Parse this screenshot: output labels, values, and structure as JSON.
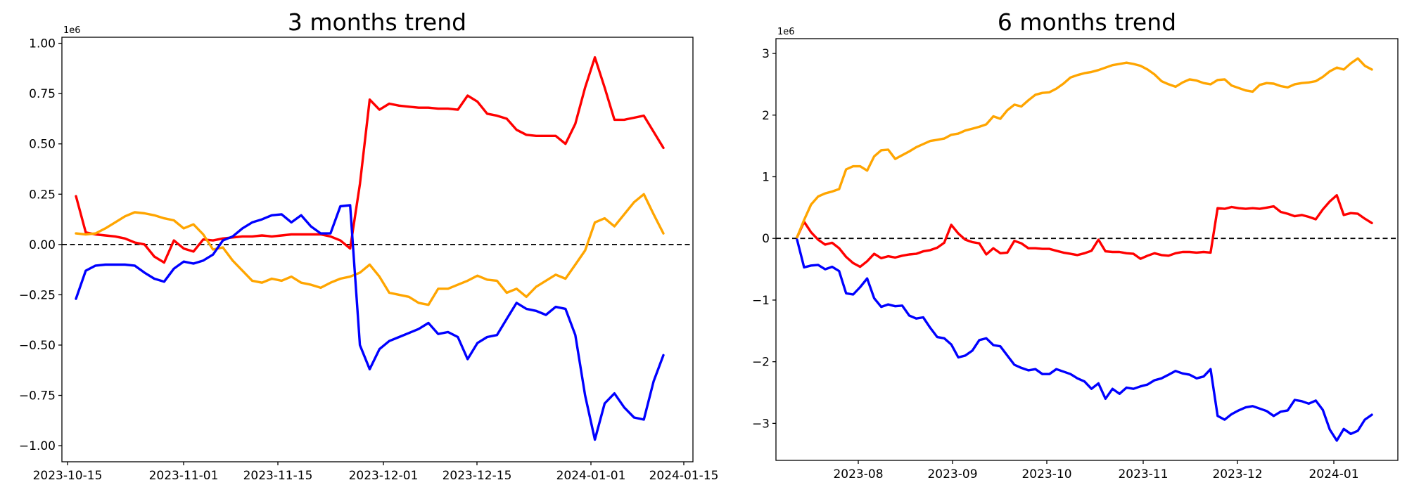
{
  "figure": {
    "background_color": "#ffffff",
    "text_color": "#000000"
  },
  "chart_data": [
    {
      "type": "line",
      "title": "3 months trend",
      "offset_label": "1e6",
      "y_unit_multiplier": 1000000,
      "grid": false,
      "legend": null,
      "zero_line": {
        "style": "dashed",
        "color": "#000000",
        "y": 0
      },
      "x_tick_labels": [
        "2023-10-15",
        "2023-11-01",
        "2023-11-15",
        "2023-12-01",
        "2023-12-15",
        "2024-01-01",
        "2024-01-15"
      ],
      "x_range": [
        "2023-10-16",
        "2024-01-11"
      ],
      "y_tick_labels": [
        "1.00",
        "0.75",
        "0.50",
        "0.25",
        "0.00",
        "−0.25",
        "−0.50",
        "−0.75",
        "−1.00"
      ],
      "y_tick_values": [
        1.0,
        0.75,
        0.5,
        0.25,
        0.0,
        -0.25,
        -0.5,
        -0.75,
        -1.0
      ],
      "ylim": [
        -1.08,
        1.03
      ],
      "series": [
        {
          "name": "red",
          "color": "#ff0000",
          "values": [
            0.24,
            0.06,
            0.05,
            0.045,
            0.04,
            0.03,
            0.01,
            0.0,
            -0.06,
            -0.09,
            0.02,
            -0.02,
            -0.035,
            0.025,
            0.02,
            0.03,
            0.035,
            0.04,
            0.04,
            0.045,
            0.04,
            0.045,
            0.05,
            0.05,
            0.05,
            0.05,
            0.04,
            0.02,
            -0.02,
            0.3,
            0.72,
            0.67,
            0.7,
            0.69,
            0.685,
            0.68,
            0.68,
            0.675,
            0.675,
            0.67,
            0.74,
            0.71,
            0.65,
            0.64,
            0.625,
            0.57,
            0.545,
            0.54,
            0.54,
            0.54,
            0.5,
            0.6,
            0.78,
            0.93,
            0.78,
            0.62,
            0.62,
            0.63,
            0.64,
            0.56,
            0.48
          ]
        },
        {
          "name": "orange",
          "color": "#ffa500",
          "values": [
            0.055,
            0.05,
            0.055,
            0.08,
            0.11,
            0.14,
            0.16,
            0.155,
            0.145,
            0.13,
            0.12,
            0.08,
            0.1,
            0.05,
            -0.025,
            -0.015,
            -0.08,
            -0.13,
            -0.18,
            -0.19,
            -0.17,
            -0.18,
            -0.16,
            -0.19,
            -0.2,
            -0.215,
            -0.19,
            -0.17,
            -0.16,
            -0.14,
            -0.1,
            -0.16,
            -0.24,
            -0.25,
            -0.26,
            -0.29,
            -0.3,
            -0.22,
            -0.22,
            -0.2,
            -0.18,
            -0.155,
            -0.175,
            -0.18,
            -0.24,
            -0.22,
            -0.26,
            -0.21,
            -0.18,
            -0.15,
            -0.17,
            -0.1,
            -0.03,
            0.11,
            0.13,
            0.09,
            0.15,
            0.21,
            0.25,
            0.15,
            0.055
          ]
        },
        {
          "name": "blue",
          "color": "#0000ff",
          "values": [
            -0.27,
            -0.13,
            -0.105,
            -0.1,
            -0.1,
            -0.1,
            -0.105,
            -0.14,
            -0.17,
            -0.185,
            -0.12,
            -0.085,
            -0.095,
            -0.08,
            -0.05,
            0.02,
            0.04,
            0.08,
            0.11,
            0.125,
            0.145,
            0.15,
            0.11,
            0.145,
            0.09,
            0.055,
            0.055,
            0.19,
            0.195,
            -0.5,
            -0.62,
            -0.52,
            -0.48,
            -0.46,
            -0.44,
            -0.42,
            -0.39,
            -0.445,
            -0.435,
            -0.46,
            -0.57,
            -0.49,
            -0.46,
            -0.45,
            -0.37,
            -0.29,
            -0.32,
            -0.33,
            -0.35,
            -0.31,
            -0.32,
            -0.45,
            -0.75,
            -0.97,
            -0.79,
            -0.74,
            -0.81,
            -0.86,
            -0.87,
            -0.68,
            -0.55
          ]
        }
      ]
    },
    {
      "type": "line",
      "title": "6 months trend",
      "offset_label": "1e6",
      "y_unit_multiplier": 1000000,
      "grid": false,
      "legend": null,
      "zero_line": {
        "style": "dashed",
        "color": "#000000",
        "y": 0
      },
      "x_tick_labels": [
        "2023-08",
        "2023-09",
        "2023-10",
        "2023-11",
        "2023-12",
        "2024-01"
      ],
      "x_range": [
        "2023-07-12",
        "2024-01-12"
      ],
      "y_tick_labels": [
        "3",
        "2",
        "1",
        "0",
        "−1",
        "−2",
        "−3"
      ],
      "y_tick_values": [
        3,
        2,
        1,
        0,
        -1,
        -2,
        -3
      ],
      "ylim": [
        -3.6,
        3.24
      ],
      "series": [
        {
          "name": "red",
          "color": "#ff0000",
          "values": [
            0.02,
            0.27,
            0.1,
            -0.02,
            -0.1,
            -0.07,
            -0.16,
            -0.3,
            -0.4,
            -0.46,
            -0.37,
            -0.25,
            -0.32,
            -0.29,
            -0.31,
            -0.28,
            -0.26,
            -0.25,
            -0.21,
            -0.19,
            -0.15,
            -0.07,
            0.22,
            0.08,
            -0.02,
            -0.06,
            -0.08,
            -0.26,
            -0.16,
            -0.24,
            -0.23,
            -0.04,
            -0.08,
            -0.16,
            -0.16,
            -0.17,
            -0.17,
            -0.2,
            -0.23,
            -0.25,
            -0.27,
            -0.24,
            -0.2,
            -0.02,
            -0.21,
            -0.22,
            -0.22,
            -0.24,
            -0.25,
            -0.33,
            -0.28,
            -0.24,
            -0.27,
            -0.28,
            -0.24,
            -0.22,
            -0.22,
            -0.23,
            -0.22,
            -0.23,
            0.49,
            0.48,
            0.51,
            0.49,
            0.48,
            0.49,
            0.48,
            0.5,
            0.52,
            0.43,
            0.4,
            0.36,
            0.38,
            0.35,
            0.31,
            0.47,
            0.6,
            0.7,
            0.38,
            0.41,
            0.4,
            0.32,
            0.25
          ]
        },
        {
          "name": "orange",
          "color": "#ffa500",
          "values": [
            0.02,
            0.3,
            0.55,
            0.68,
            0.73,
            0.76,
            0.8,
            1.12,
            1.17,
            1.17,
            1.1,
            1.33,
            1.43,
            1.44,
            1.29,
            1.35,
            1.41,
            1.48,
            1.53,
            1.58,
            1.6,
            1.62,
            1.68,
            1.7,
            1.75,
            1.78,
            1.81,
            1.85,
            1.98,
            1.94,
            2.08,
            2.17,
            2.14,
            2.24,
            2.33,
            2.36,
            2.37,
            2.43,
            2.51,
            2.61,
            2.65,
            2.68,
            2.7,
            2.73,
            2.77,
            2.81,
            2.83,
            2.85,
            2.83,
            2.8,
            2.74,
            2.66,
            2.55,
            2.5,
            2.46,
            2.53,
            2.58,
            2.56,
            2.52,
            2.5,
            2.57,
            2.58,
            2.48,
            2.44,
            2.4,
            2.38,
            2.49,
            2.52,
            2.51,
            2.47,
            2.45,
            2.5,
            2.52,
            2.53,
            2.55,
            2.62,
            2.71,
            2.77,
            2.74,
            2.84,
            2.92,
            2.8,
            2.74
          ]
        },
        {
          "name": "blue",
          "color": "#0000ff",
          "values": [
            -0.02,
            -0.47,
            -0.44,
            -0.43,
            -0.5,
            -0.46,
            -0.53,
            -0.89,
            -0.91,
            -0.79,
            -0.65,
            -0.97,
            -1.11,
            -1.07,
            -1.1,
            -1.09,
            -1.25,
            -1.3,
            -1.28,
            -1.45,
            -1.6,
            -1.62,
            -1.72,
            -1.93,
            -1.9,
            -1.82,
            -1.65,
            -1.62,
            -1.73,
            -1.75,
            -1.9,
            -2.05,
            -2.1,
            -2.14,
            -2.12,
            -2.2,
            -2.2,
            -2.12,
            -2.16,
            -2.2,
            -2.27,
            -2.32,
            -2.44,
            -2.35,
            -2.6,
            -2.44,
            -2.52,
            -2.42,
            -2.44,
            -2.4,
            -2.37,
            -2.3,
            -2.27,
            -2.21,
            -2.15,
            -2.19,
            -2.21,
            -2.27,
            -2.24,
            -2.12,
            -2.88,
            -2.94,
            -2.85,
            -2.79,
            -2.74,
            -2.72,
            -2.76,
            -2.8,
            -2.88,
            -2.81,
            -2.79,
            -2.62,
            -2.64,
            -2.68,
            -2.63,
            -2.78,
            -3.1,
            -3.28,
            -3.09,
            -3.17,
            -3.12,
            -2.94,
            -2.86
          ]
        }
      ]
    }
  ]
}
